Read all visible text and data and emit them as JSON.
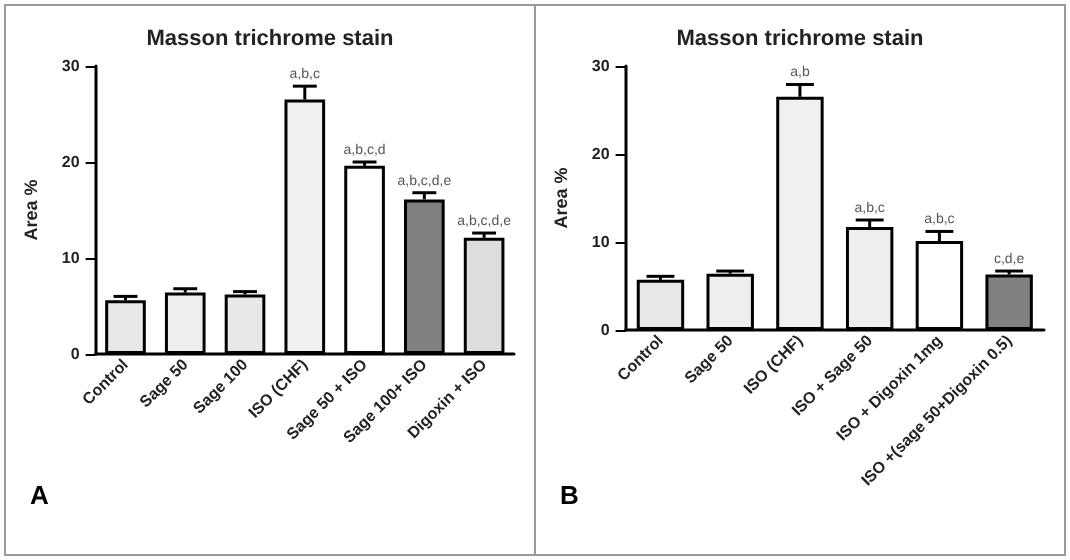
{
  "chart_data": [
    {
      "type": "bar",
      "title": "Masson trichrome stain",
      "ylabel": "Area %",
      "categories": [
        "Control",
        "Sage 50",
        "Sage 100",
        "ISO (CHF)",
        "Sage 50 + ISO",
        "Sage 100+ ISO",
        "Digoxin + ISO"
      ],
      "values": [
        5.6,
        6.4,
        6.2,
        26.5,
        19.6,
        16.1,
        12.1
      ],
      "errors": [
        0.4,
        0.4,
        0.3,
        1.4,
        0.4,
        0.7,
        0.5
      ],
      "colors": [
        "#e8e8e8",
        "#eeeeee",
        "#e8e8e8",
        "#f0f0f0",
        "#ffffff",
        "#808080",
        "#dddddd"
      ],
      "ylim": [
        0,
        30
      ],
      "yticks": [
        0,
        10,
        20,
        30
      ],
      "grid": false,
      "annotations": [
        {
          "text": "a,b,c",
          "x": "ISO (CHF)",
          "y": 27.9
        },
        {
          "text": "a,b,c,d",
          "x": "Sage 50 + ISO",
          "y": 20.0
        },
        {
          "text": "a,b,c,d,e",
          "x": "Sage 100+ ISO",
          "y": 16.8
        },
        {
          "text": "a,b,c,d,e",
          "x": "Digoxin + ISO",
          "y": 12.6
        },
        "A"
      ]
    },
    {
      "type": "bar",
      "title": "Masson trichrome stain",
      "ylabel": "Area %",
      "categories": [
        "Control",
        "Sage 50",
        "ISO (CHF)",
        "ISO + Sage 50",
        "ISO + Digoxin 1mg",
        "ISO +(sage 50+Digoxin 0.5)"
      ],
      "values": [
        5.7,
        6.4,
        26.5,
        11.7,
        10.1,
        6.3
      ],
      "errors": [
        0.4,
        0.3,
        1.4,
        0.8,
        1.1,
        0.4
      ],
      "colors": [
        "#e8e8e8",
        "#eeeeee",
        "#f0f0f0",
        "#eeeeee",
        "#ffffff",
        "#808080"
      ],
      "ylim": [
        0,
        30
      ],
      "yticks": [
        0,
        10,
        20,
        30
      ],
      "grid": false,
      "annotations": [
        {
          "text": "a,b",
          "x": "ISO (CHF)",
          "y": 27.9
        },
        {
          "text": "a,b,c",
          "x": "ISO + Sage 50",
          "y": 12.5
        },
        {
          "text": "a,b,c",
          "x": "ISO + Digoxin 1mg",
          "y": 11.2
        },
        {
          "text": "c,d,e",
          "x": "ISO +(sage 50+Digoxin 0.5)",
          "y": 6.7
        },
        "B"
      ]
    }
  ]
}
